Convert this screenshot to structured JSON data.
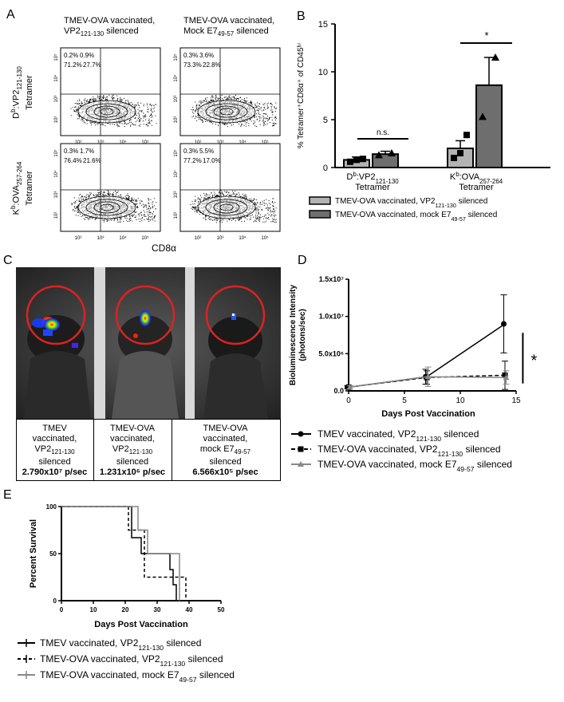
{
  "panel_letters": {
    "a": "A",
    "b": "B",
    "c": "C",
    "d": "D",
    "e": "E"
  },
  "panel_a": {
    "col1_title_line1": "TMEV-OVA vaccinated,",
    "col1_title_line2": "VP2",
    "col1_title_sub": "121-130",
    "col1_title_tail": " silenced",
    "col2_title_line1": "TMEV-OVA vaccinated,",
    "col2_title_line2": "Mock E7",
    "col2_title_sub": "49-57",
    "col2_title_tail": " silenced",
    "row1_label_main": "D",
    "row1_label_sup": "b",
    "row1_label_rest": ":VP2",
    "row1_label_sub": "121-130",
    "row1_label_tetramer": "Tetramer",
    "row2_label_main": "K",
    "row2_label_sup": "b",
    "row2_label_rest": ":OVA",
    "row2_label_sub": "257-264",
    "row2_label_tetramer": "Tetramer",
    "x_axis_label": "CD8α",
    "quadrants": [
      {
        "ul": "0.2%",
        "ur": "0.9%",
        "ll": "71.2%",
        "lr": "27.7%"
      },
      {
        "ul": "0.3%",
        "ur": "3.6%",
        "ll": "73.3%",
        "lr": "22.8%"
      },
      {
        "ul": "0.3%",
        "ur": "1.7%",
        "ll": "76.4%",
        "lr": "21.6%"
      },
      {
        "ul": "0.3%",
        "ur": "5.5%",
        "ll": "77.2%",
        "lr": "17.0%"
      }
    ],
    "tick_labels": [
      "10²",
      "10³",
      "10⁴",
      "10⁵"
    ],
    "y_tick_labels": [
      "10⁵",
      "10⁴",
      "10³",
      "10²"
    ]
  },
  "panel_c": {
    "captions": [
      {
        "l1": "TMEV",
        "l2": "vaccinated,",
        "l3": "VP2",
        "sub": "121-130",
        "l4": "silenced",
        "value": "2.790x10⁷ p/sec"
      },
      {
        "l1": "TMEV-OVA",
        "l2": "vaccinated,",
        "l3": "VP2",
        "sub": "121-130",
        "l4": "silenced",
        "value": "1.231x10⁶ p/sec"
      },
      {
        "l1": "TMEV-OVA",
        "l2": "vaccinated,",
        "l3": "mock E7",
        "sub": "49-57",
        "l4": "silenced",
        "value": "6.566x10⁵ p/sec"
      }
    ]
  },
  "chart_data": [
    {
      "id": "B",
      "type": "bar",
      "ylabel": "% Tetramer⁺CD8α⁺ of CD45ʰⁱ",
      "ylim": [
        0,
        15
      ],
      "yticks": [
        0,
        5,
        10,
        15
      ],
      "categories": [
        {
          "pre": "D",
          "sup": "b",
          "mid": ":VP2",
          "sub": "121-130",
          "line2": "Tetramer"
        },
        {
          "pre": "K",
          "sup": "b",
          "mid": ":OVA",
          "sub": "257-264",
          "line2": "Tetramer"
        }
      ],
      "series": [
        {
          "name_pre": "TMEV-OVA vaccinated, VP2",
          "name_sub": "121-130",
          "name_post": " silenced",
          "color": "#b3b3b3",
          "values": [
            0.8,
            2.0
          ],
          "errors": [
            0.3,
            0.8
          ],
          "points": [
            [
              0.6,
              0.8,
              0.9
            ],
            [
              1.0,
              1.5,
              3.4
            ]
          ],
          "marker": "square"
        },
        {
          "name_pre": "TMEV-OVA vaccinated, mock E7",
          "name_sub": "49-57",
          "name_post": " silenced",
          "color": "#6e6e6e",
          "values": [
            1.4,
            8.6
          ],
          "errors": [
            0.3,
            2.9
          ],
          "points": [
            [
              1.3,
              1.5
            ],
            [
              5.3,
              11.5
            ]
          ],
          "marker": "triangle"
        }
      ],
      "annotations": [
        {
          "text": "n.s.",
          "between": 0
        },
        {
          "text": "*",
          "between": 1
        }
      ]
    },
    {
      "id": "D",
      "type": "line",
      "ylabel_line1": "Bioluminescence Intensity",
      "ylabel_line2": "(photons/sec)",
      "xlabel": "Days Post Vaccination",
      "xlim": [
        0,
        15
      ],
      "ylim": [
        0,
        15000000
      ],
      "xticks": [
        0,
        5,
        10,
        15
      ],
      "ytick_values": [
        0,
        5000000,
        10000000,
        15000000
      ],
      "ytick_labels": [
        "0.0",
        "5.0x10⁶",
        "1.0x10⁷",
        "1.5x10⁷"
      ],
      "x": [
        0,
        7,
        14
      ],
      "series": [
        {
          "name_pre": "TMEV vaccinated, VP2",
          "name_sub": "121-130",
          "name_post": " silenced",
          "color": "#000000",
          "dash": "",
          "marker": "circle",
          "values": [
            500000,
            1900000,
            9000000
          ],
          "errors": [
            200000,
            1000000,
            3900000
          ]
        },
        {
          "name_pre": "TMEV-OVA vaccinated, VP2",
          "name_sub": "121-130",
          "name_post": " silenced",
          "color": "#000000",
          "dash": "5,3",
          "marker": "square",
          "values": [
            500000,
            1800000,
            2100000
          ],
          "errors": [
            200000,
            900000,
            1900000
          ]
        },
        {
          "name_pre": "TMEV-OVA vaccinated, mock E7",
          "name_sub": "49-57",
          "name_post": " silenced",
          "color": "#888888",
          "dash": "",
          "marker": "triangle",
          "values": [
            500000,
            1900000,
            1800000
          ],
          "errors": [
            200000,
            1300000,
            900000
          ]
        }
      ],
      "annotation": "*"
    },
    {
      "id": "E",
      "type": "line",
      "ylabel": "Percent Survival",
      "xlabel": "Days Post Vaccination",
      "xlim": [
        0,
        50
      ],
      "ylim": [
        0,
        100
      ],
      "xticks": [
        0,
        10,
        20,
        30,
        40,
        50
      ],
      "yticks": [
        0,
        50,
        100
      ],
      "series": [
        {
          "name_pre": "TMEV vaccinated, VP2",
          "name_sub": "121-130",
          "name_post": " silenced",
          "color": "#000000",
          "dash": "",
          "steps": [
            [
              0,
              100
            ],
            [
              22,
              100
            ],
            [
              22,
              67
            ],
            [
              25,
              67
            ],
            [
              25,
              50
            ],
            [
              34,
              50
            ],
            [
              34,
              33
            ],
            [
              35,
              33
            ],
            [
              35,
              17
            ],
            [
              36,
              17
            ],
            [
              36,
              0
            ]
          ]
        },
        {
          "name_pre": "TMEV-OVA vaccinated, VP2",
          "name_sub": "121-130",
          "name_post": " silenced",
          "color": "#000000",
          "dash": "4,3",
          "steps": [
            [
              0,
              100
            ],
            [
              21,
              100
            ],
            [
              21,
              75
            ],
            [
              26,
              75
            ],
            [
              26,
              25
            ],
            [
              39,
              25
            ],
            [
              39,
              0
            ],
            [
              41,
              0
            ]
          ]
        },
        {
          "name_pre": "TMEV-OVA vaccinated, mock E7",
          "name_sub": "49-57",
          "name_post": " silenced",
          "color": "#888888",
          "dash": "",
          "steps": [
            [
              0,
              100
            ],
            [
              24,
              100
            ],
            [
              24,
              75
            ],
            [
              27,
              75
            ],
            [
              27,
              50
            ],
            [
              37,
              50
            ],
            [
              37,
              0
            ]
          ]
        }
      ]
    }
  ]
}
